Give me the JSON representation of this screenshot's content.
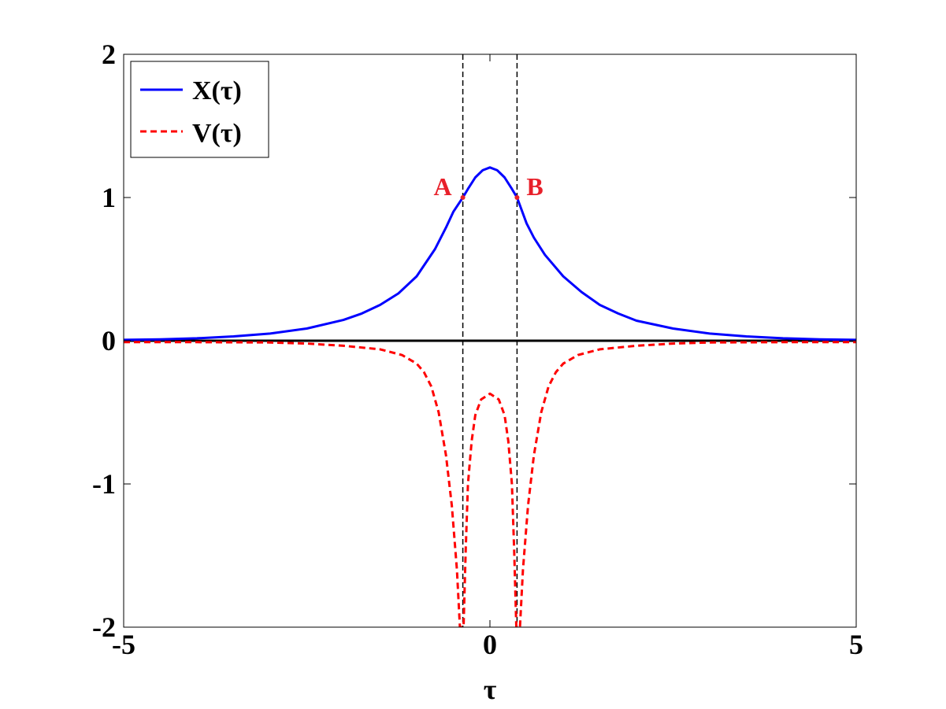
{
  "chart_data": {
    "type": "line",
    "title": "",
    "xlabel": "τ",
    "ylabel": "",
    "xlim": [
      -5,
      5
    ],
    "ylim": [
      -2,
      2
    ],
    "xticks": [
      -5,
      0,
      5
    ],
    "yticks": [
      -2,
      -1,
      0,
      1,
      2
    ],
    "grid": false,
    "legend_position": "top-left",
    "series": [
      {
        "name": "X(τ)",
        "style": "solid",
        "color": "#0000ff",
        "points": [
          [
            -5,
            0.006
          ],
          [
            -4.5,
            0.01
          ],
          [
            -4,
            0.017
          ],
          [
            -3.5,
            0.03
          ],
          [
            -3,
            0.05
          ],
          [
            -2.5,
            0.085
          ],
          [
            -2,
            0.145
          ],
          [
            -1.75,
            0.19
          ],
          [
            -1.5,
            0.25
          ],
          [
            -1.25,
            0.33
          ],
          [
            -1,
            0.45
          ],
          [
            -0.75,
            0.64
          ],
          [
            -0.6,
            0.79
          ],
          [
            -0.5,
            0.9
          ],
          [
            -0.37,
            1.0
          ],
          [
            -0.3,
            1.06
          ],
          [
            -0.2,
            1.14
          ],
          [
            -0.1,
            1.19
          ],
          [
            0,
            1.21
          ],
          [
            0.1,
            1.19
          ],
          [
            0.2,
            1.14
          ],
          [
            0.3,
            1.06
          ],
          [
            0.37,
            1.0
          ],
          [
            0.5,
            0.82
          ],
          [
            0.6,
            0.72
          ],
          [
            0.75,
            0.6
          ],
          [
            1,
            0.45
          ],
          [
            1.25,
            0.34
          ],
          [
            1.5,
            0.25
          ],
          [
            1.75,
            0.19
          ],
          [
            2,
            0.14
          ],
          [
            2.5,
            0.085
          ],
          [
            3,
            0.05
          ],
          [
            3.5,
            0.03
          ],
          [
            4,
            0.017
          ],
          [
            4.5,
            0.01
          ],
          [
            5,
            0.006
          ]
        ]
      },
      {
        "name": "V(τ)",
        "style": "dashed",
        "color": "#ff0000",
        "points": [
          [
            -5,
            -0.01
          ],
          [
            -4,
            -0.01
          ],
          [
            -3,
            -0.012
          ],
          [
            -2.5,
            -0.02
          ],
          [
            -2,
            -0.035
          ],
          [
            -1.5,
            -0.06
          ],
          [
            -1.2,
            -0.1
          ],
          [
            -1,
            -0.16
          ],
          [
            -0.9,
            -0.22
          ],
          [
            -0.8,
            -0.32
          ],
          [
            -0.7,
            -0.5
          ],
          [
            -0.6,
            -0.8
          ],
          [
            -0.52,
            -1.15
          ],
          [
            -0.45,
            -1.6
          ],
          [
            -0.41,
            -2.0
          ],
          [
            -0.36,
            -2.0
          ],
          [
            -0.33,
            -1.45
          ],
          [
            -0.3,
            -1.0
          ],
          [
            -0.25,
            -0.7
          ],
          [
            -0.2,
            -0.52
          ],
          [
            -0.12,
            -0.41
          ],
          [
            0,
            -0.37
          ],
          [
            0.12,
            -0.41
          ],
          [
            0.2,
            -0.52
          ],
          [
            0.25,
            -0.7
          ],
          [
            0.3,
            -1.0
          ],
          [
            0.33,
            -1.45
          ],
          [
            0.36,
            -2.0
          ],
          [
            0.41,
            -2.0
          ],
          [
            0.45,
            -1.6
          ],
          [
            0.52,
            -1.15
          ],
          [
            0.6,
            -0.8
          ],
          [
            0.7,
            -0.5
          ],
          [
            0.8,
            -0.32
          ],
          [
            0.9,
            -0.22
          ],
          [
            1,
            -0.16
          ],
          [
            1.2,
            -0.1
          ],
          [
            1.5,
            -0.06
          ],
          [
            2,
            -0.035
          ],
          [
            2.5,
            -0.02
          ],
          [
            3,
            -0.012
          ],
          [
            4,
            -0.01
          ],
          [
            5,
            -0.01
          ]
        ]
      }
    ],
    "reference_lines": {
      "horizontal": [
        {
          "y": 0,
          "color": "#000000",
          "style": "solid"
        }
      ],
      "vertical": [
        {
          "x": -0.37,
          "color": "#000000",
          "style": "dashed"
        },
        {
          "x": 0.37,
          "color": "#000000",
          "style": "dashed"
        }
      ]
    },
    "annotations": [
      {
        "label": "A",
        "x": -0.37,
        "y": 1.0,
        "color": "#e8202a",
        "side": "left"
      },
      {
        "label": "B",
        "x": 0.37,
        "y": 1.0,
        "color": "#e8202a",
        "side": "right"
      }
    ]
  }
}
